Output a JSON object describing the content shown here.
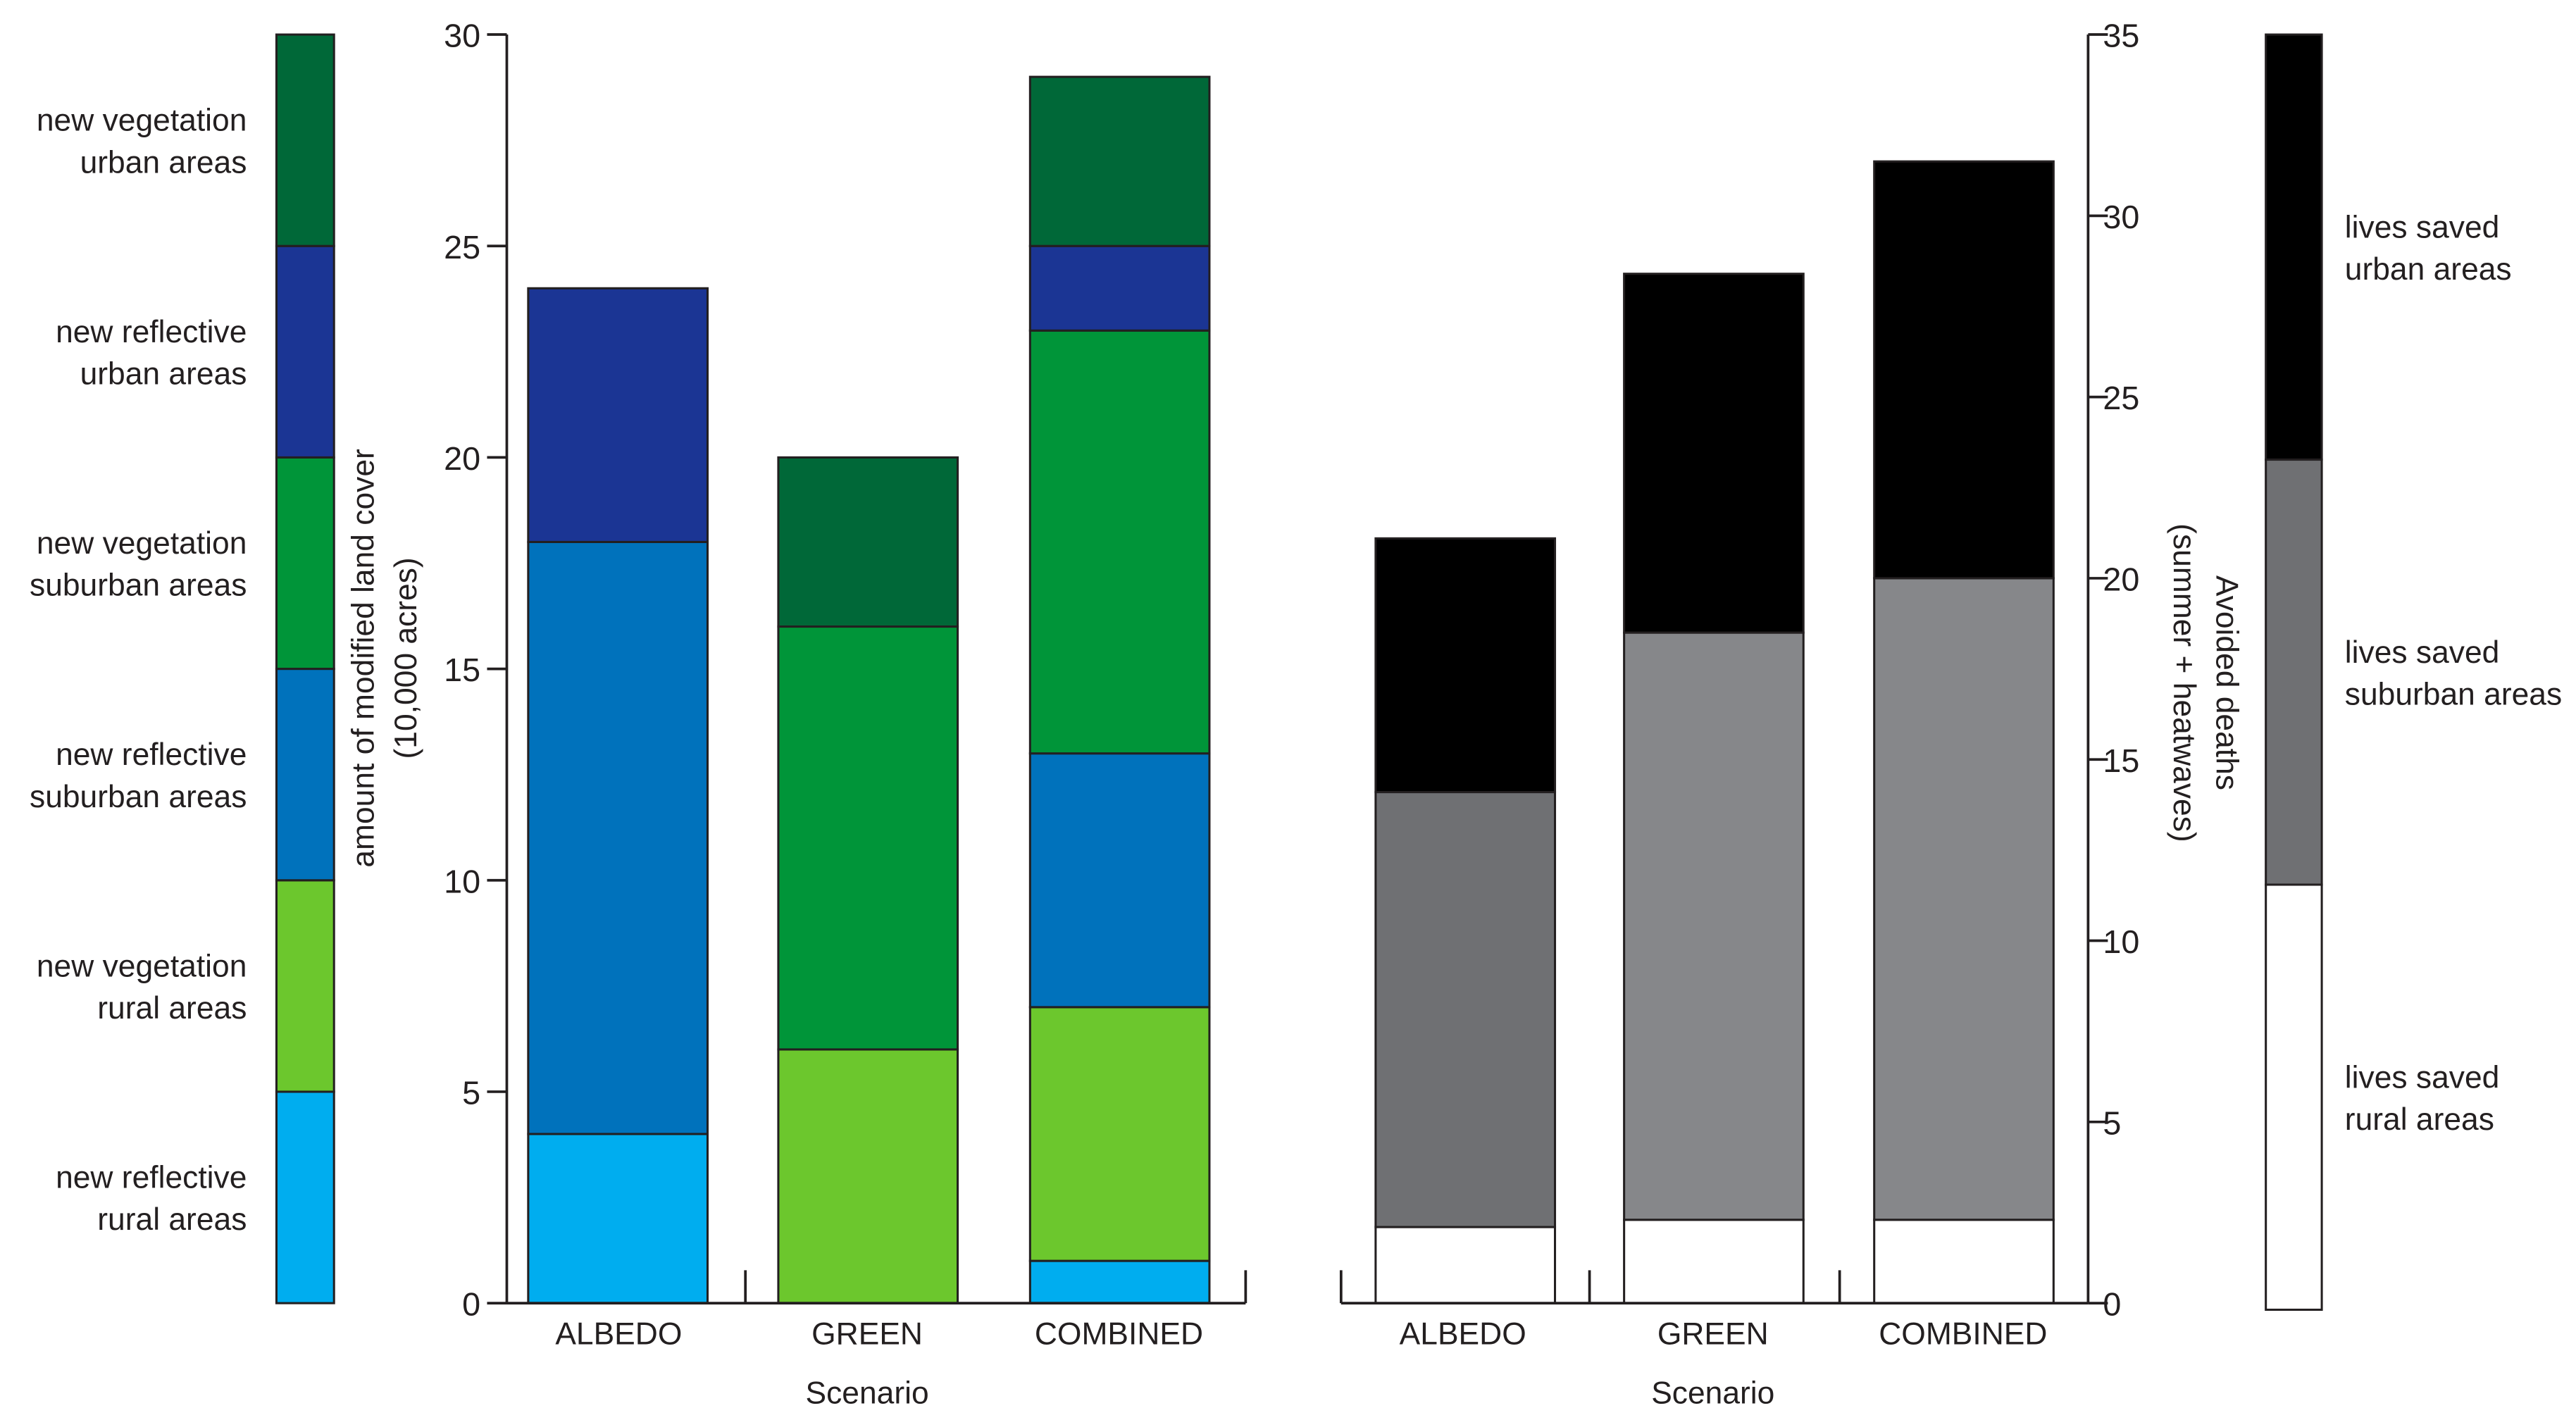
{
  "chart_data": [
    {
      "type": "bar",
      "stacked": true,
      "categories": [
        "ALBEDO",
        "GREEN",
        "COMBINED"
      ],
      "xlabel": "Scenario",
      "ylabel": "amount of modified land cover",
      "ylabel_units": "(10,000 acres)",
      "ylim": [
        0,
        30
      ],
      "yticks": [
        "0",
        "5",
        "10",
        "15",
        "20",
        "25",
        "30"
      ],
      "y_axis_side": "left",
      "legend_position": "left",
      "series": [
        {
          "name": "new reflective rural areas",
          "legend": [
            "new reflective",
            "rural areas"
          ],
          "color": "#00adef",
          "values": [
            4,
            0,
            1
          ]
        },
        {
          "name": "new vegetation rural areas",
          "legend": [
            "new vegetation",
            "rural areas"
          ],
          "color": "#6cc72d",
          "values": [
            0,
            6,
            6
          ]
        },
        {
          "name": "new reflective suburban areas",
          "legend": [
            "new reflective",
            "suburban areas"
          ],
          "color": "#0072bc",
          "values": [
            14,
            0,
            6
          ]
        },
        {
          "name": "new vegetation suburban areas",
          "legend": [
            "new vegetation",
            "suburban areas"
          ],
          "color": "#009539",
          "values": [
            0,
            10,
            10
          ]
        },
        {
          "name": "new reflective urban areas",
          "legend": [
            "new reflective",
            "urban areas"
          ],
          "color": "#1b3594",
          "values": [
            6,
            0,
            2
          ]
        },
        {
          "name": "new vegetation urban areas",
          "legend": [
            "new vegetation",
            "urban areas"
          ],
          "color": "#006838",
          "values": [
            0,
            4,
            4
          ]
        }
      ]
    },
    {
      "type": "bar",
      "stacked": true,
      "categories": [
        "ALBEDO",
        "GREEN",
        "COMBINED"
      ],
      "xlabel": "Scenario",
      "ylabel": "Avoided deaths",
      "ylabel_units": "(summer + heatwaves)",
      "ylim": [
        0,
        35
      ],
      "yticks": [
        "0",
        "5",
        "10",
        "15",
        "20",
        "25",
        "30",
        "35"
      ],
      "y_axis_side": "right",
      "legend_position": "right",
      "series": [
        {
          "name": "lives saved rural areas",
          "legend": [
            "lives saved",
            "rural areas"
          ],
          "color": "#ffffff",
          "values": [
            2.1,
            2.3,
            2.3
          ]
        },
        {
          "name": "lives saved suburban areas",
          "legend": [
            "lives saved",
            "suburban areas"
          ],
          "color": "#6f7073",
          "colors": [
            "#6f7073",
            "#86878a",
            "#86878a"
          ],
          "values": [
            12.0,
            16.2,
            17.7
          ]
        },
        {
          "name": "lives saved urban areas",
          "legend": [
            "lives saved",
            "urban areas"
          ],
          "color": "#000000",
          "values": [
            7.0,
            9.9,
            11.5
          ]
        }
      ]
    }
  ]
}
